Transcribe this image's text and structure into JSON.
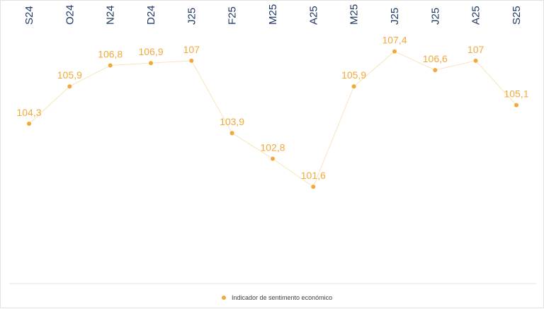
{
  "chart_data": {
    "type": "line",
    "categories": [
      "S24",
      "O24",
      "N24",
      "D24",
      "J25",
      "F25",
      "M25",
      "A25",
      "M25",
      "J25",
      "J25",
      "A25",
      "S25"
    ],
    "series": [
      {
        "name": "Indicador de sentimento económico",
        "values": [
          104.3,
          105.9,
          106.8,
          106.9,
          107,
          103.9,
          102.8,
          101.6,
          105.9,
          107.4,
          106.6,
          107,
          105.1
        ],
        "labels": [
          "104,3",
          "105,9",
          "106,8",
          "106,9",
          "107",
          "103,9",
          "102,8",
          "101,6",
          "105,9",
          "107,4",
          "106,6",
          "107",
          "105,1"
        ]
      }
    ],
    "colors": {
      "series": "#f2a93b",
      "line": "#fbe3ba",
      "category_text": "#1f3864",
      "separator": "#e3e3e3"
    },
    "legend_position": "bottom",
    "category_axis_position": "top",
    "grid": false
  }
}
